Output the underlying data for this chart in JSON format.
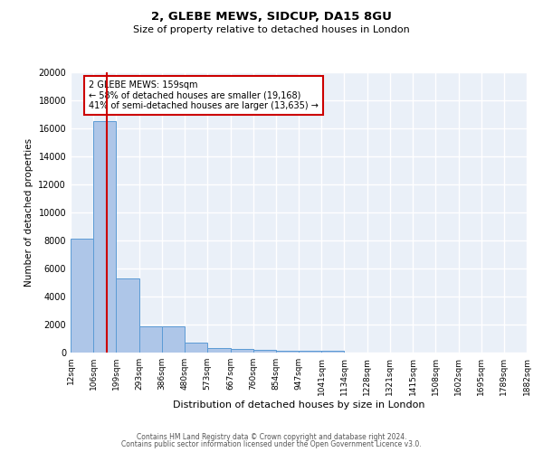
{
  "title1": "2, GLEBE MEWS, SIDCUP, DA15 8GU",
  "title2": "Size of property relative to detached houses in London",
  "xlabel": "Distribution of detached houses by size in London",
  "ylabel": "Number of detached properties",
  "bin_edges": [
    12,
    106,
    199,
    293,
    386,
    480,
    573,
    667,
    760,
    854,
    947,
    1041,
    1134,
    1228,
    1321,
    1415,
    1508,
    1602,
    1695,
    1789,
    1882
  ],
  "bin_labels": [
    "12sqm",
    "106sqm",
    "199sqm",
    "293sqm",
    "386sqm",
    "480sqm",
    "573sqm",
    "667sqm",
    "760sqm",
    "854sqm",
    "947sqm",
    "1041sqm",
    "1134sqm",
    "1228sqm",
    "1321sqm",
    "1415sqm",
    "1508sqm",
    "1602sqm",
    "1695sqm",
    "1789sqm",
    "1882sqm"
  ],
  "bar_heights": [
    8100,
    16500,
    5300,
    1850,
    1850,
    700,
    300,
    250,
    200,
    150,
    150,
    150,
    0,
    0,
    0,
    0,
    0,
    0,
    0,
    0
  ],
  "bar_color": "#aec6e8",
  "bar_edge_color": "#5b9bd5",
  "bg_color": "#eaf0f8",
  "grid_color": "#ffffff",
  "red_line_x": 159,
  "ylim": [
    0,
    20000
  ],
  "yticks": [
    0,
    2000,
    4000,
    6000,
    8000,
    10000,
    12000,
    14000,
    16000,
    18000,
    20000
  ],
  "annotation_text": "2 GLEBE MEWS: 159sqm\n← 58% of detached houses are smaller (19,168)\n41% of semi-detached houses are larger (13,635) →",
  "annotation_box_color": "#ffffff",
  "annotation_border_color": "#cc0000",
  "footer1": "Contains HM Land Registry data © Crown copyright and database right 2024.",
  "footer2": "Contains public sector information licensed under the Open Government Licence v3.0."
}
